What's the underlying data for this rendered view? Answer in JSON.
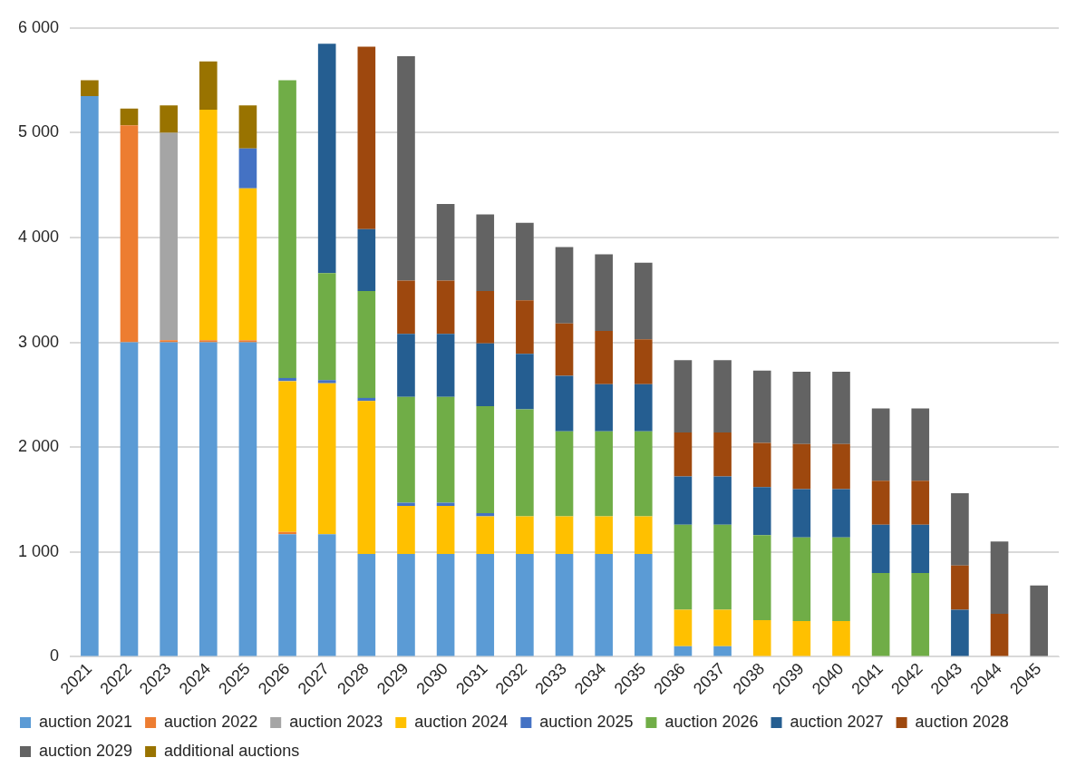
{
  "chart_data": {
    "type": "bar",
    "stacked": true,
    "grid": "y",
    "legend": "bottom",
    "categories": [
      "2021",
      "2022",
      "2023",
      "2024",
      "2025",
      "2026",
      "2027",
      "2028",
      "2029",
      "2030",
      "2031",
      "2032",
      "2033",
      "2034",
      "2035",
      "2036",
      "2037",
      "2038",
      "2039",
      "2040",
      "2041",
      "2042",
      "2043",
      "2044",
      "2045"
    ],
    "ylim": [
      0,
      6000
    ],
    "yticks": [
      0,
      {
        "value": 1000,
        "label": "1 000"
      },
      {
        "value": 2000,
        "label": "2 000"
      },
      {
        "value": 3000,
        "label": "3 000"
      },
      {
        "value": 4000,
        "label": "4 000"
      },
      {
        "value": 5000,
        "label": "5 000"
      },
      {
        "value": 6000,
        "label": "6 000"
      }
    ],
    "series": [
      {
        "name": "auction 2021",
        "color": "#5b9bd5",
        "values": [
          5350,
          3000,
          3000,
          3000,
          3000,
          1170,
          1170,
          980,
          980,
          980,
          980,
          980,
          980,
          980,
          980,
          100,
          100,
          null,
          null,
          null,
          null,
          null,
          null,
          null,
          null
        ]
      },
      {
        "name": "auction 2022",
        "color": "#ed7d31",
        "values": [
          null,
          2070,
          20,
          20,
          20,
          20,
          null,
          null,
          null,
          null,
          null,
          null,
          null,
          null,
          null,
          null,
          null,
          null,
          null,
          null,
          null,
          null,
          null,
          null,
          null
        ]
      },
      {
        "name": "auction 2023",
        "color": "#a5a5a5",
        "values": [
          null,
          null,
          1980,
          null,
          null,
          null,
          null,
          null,
          null,
          null,
          null,
          null,
          null,
          null,
          null,
          null,
          null,
          null,
          null,
          null,
          null,
          null,
          null,
          null,
          null
        ]
      },
      {
        "name": "auction 2024",
        "color": "#ffc000",
        "values": [
          null,
          null,
          null,
          2200,
          1450,
          1440,
          1440,
          1460,
          460,
          460,
          360,
          360,
          360,
          360,
          360,
          350,
          350,
          350,
          340,
          340,
          null,
          null,
          null,
          null,
          null
        ]
      },
      {
        "name": "auction 2025",
        "color": "#4472c4",
        "values": [
          null,
          null,
          null,
          null,
          380,
          30,
          30,
          30,
          30,
          30,
          30,
          null,
          null,
          null,
          null,
          null,
          null,
          null,
          null,
          null,
          null,
          null,
          null,
          null,
          null
        ]
      },
      {
        "name": "auction 2026",
        "color": "#70ad47",
        "values": [
          null,
          null,
          null,
          null,
          null,
          2840,
          1020,
          1020,
          1010,
          1010,
          1020,
          1020,
          810,
          810,
          810,
          810,
          810,
          810,
          800,
          800,
          800,
          800,
          null,
          null,
          null
        ]
      },
      {
        "name": "auction 2027",
        "color": "#255e91",
        "values": [
          null,
          null,
          null,
          null,
          null,
          null,
          2190,
          590,
          600,
          600,
          600,
          530,
          530,
          450,
          450,
          460,
          460,
          460,
          460,
          460,
          460,
          460,
          450,
          null,
          null
        ]
      },
      {
        "name": "auction 2028",
        "color": "#9e480e",
        "values": [
          null,
          null,
          null,
          null,
          null,
          null,
          null,
          1740,
          510,
          510,
          500,
          510,
          500,
          510,
          430,
          420,
          420,
          420,
          430,
          430,
          420,
          420,
          420,
          410,
          null
        ]
      },
      {
        "name": "auction 2029",
        "color": "#636363",
        "values": [
          null,
          null,
          null,
          null,
          null,
          null,
          null,
          null,
          2140,
          730,
          730,
          740,
          730,
          730,
          730,
          690,
          690,
          690,
          690,
          690,
          690,
          690,
          690,
          690,
          680
        ]
      },
      {
        "name": "additional auctions",
        "color": "#997300",
        "values": [
          150,
          160,
          260,
          460,
          410,
          null,
          null,
          null,
          null,
          null,
          null,
          null,
          null,
          null,
          null,
          null,
          null,
          null,
          null,
          null,
          null,
          null,
          null,
          null,
          null
        ]
      }
    ]
  }
}
